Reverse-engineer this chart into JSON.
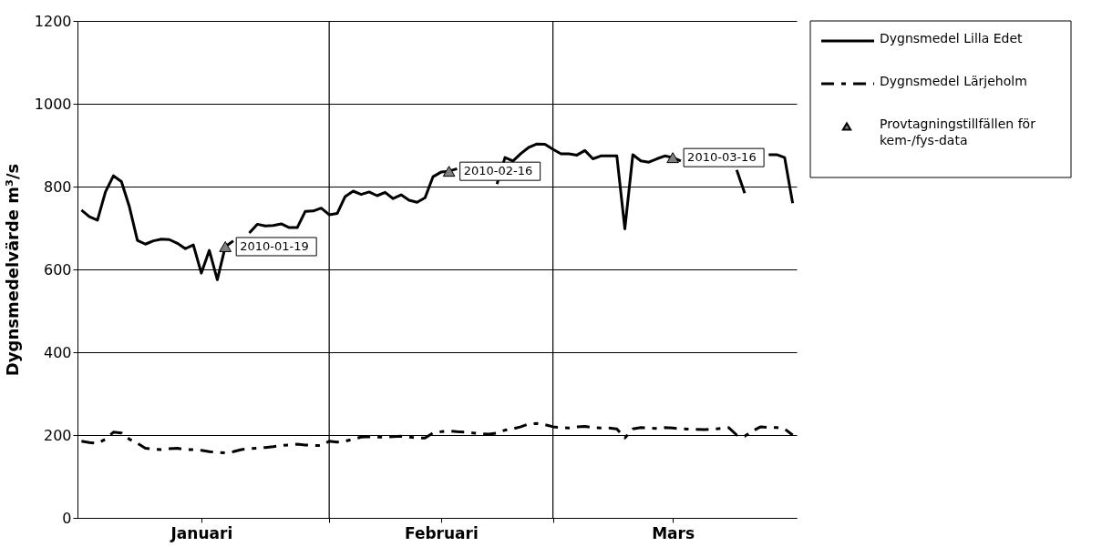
{
  "chart_data": {
    "type": "line",
    "ylabel": "Dygnsmedelvärde m³/s",
    "ylim": [
      0,
      1200
    ],
    "yticks": [
      0,
      200,
      400,
      600,
      800,
      1000,
      1200
    ],
    "xlim": [
      "2009-12-31T12:00",
      "2010-03-31T12:00"
    ],
    "xticks": [
      {
        "value": "2010-01-16",
        "label": "Januari"
      },
      {
        "value": "2010-02-01",
        "label": null
      },
      {
        "value": "2010-02-15",
        "label": "Februari"
      },
      {
        "value": "2010-03-01",
        "label": null
      },
      {
        "value": "2010-03-16",
        "label": "Mars"
      }
    ],
    "grid": true,
    "legend": "right",
    "x": [
      "2010-01-01",
      "2010-01-02",
      "2010-01-03",
      "2010-01-04",
      "2010-01-05",
      "2010-01-06",
      "2010-01-07",
      "2010-01-08",
      "2010-01-09",
      "2010-01-10",
      "2010-01-11",
      "2010-01-12",
      "2010-01-13",
      "2010-01-14",
      "2010-01-15",
      "2010-01-16",
      "2010-01-17",
      "2010-01-18",
      "2010-01-19",
      "2010-01-20",
      "2010-01-21",
      "2010-01-22",
      "2010-01-23",
      "2010-01-24",
      "2010-01-25",
      "2010-01-26",
      "2010-01-27",
      "2010-01-28",
      "2010-01-29",
      "2010-01-30",
      "2010-01-31",
      "2010-02-01",
      "2010-02-02",
      "2010-02-03",
      "2010-02-04",
      "2010-02-05",
      "2010-02-06",
      "2010-02-07",
      "2010-02-08",
      "2010-02-09",
      "2010-02-10",
      "2010-02-11",
      "2010-02-12",
      "2010-02-13",
      "2010-02-14",
      "2010-02-15",
      "2010-02-16",
      "2010-02-17",
      "2010-02-18",
      "2010-02-19",
      "2010-02-20",
      "2010-02-21",
      "2010-02-22",
      "2010-02-23",
      "2010-02-24",
      "2010-02-25",
      "2010-02-26",
      "2010-02-27",
      "2010-02-28",
      "2010-03-01",
      "2010-03-02",
      "2010-03-03",
      "2010-03-04",
      "2010-03-05",
      "2010-03-06",
      "2010-03-07",
      "2010-03-08",
      "2010-03-09",
      "2010-03-10",
      "2010-03-11",
      "2010-03-12",
      "2010-03-13",
      "2010-03-14",
      "2010-03-15",
      "2010-03-16",
      "2010-03-17",
      "2010-03-18",
      "2010-03-19",
      "2010-03-20",
      "2010-03-21",
      "2010-03-22",
      "2010-03-23",
      "2010-03-24",
      "2010-03-25",
      "2010-03-26",
      "2010-03-27",
      "2010-03-28",
      "2010-03-29",
      "2010-03-30",
      "2010-03-31"
    ],
    "series": [
      {
        "name": "Dygnsmedel Lilla Edet",
        "type": "line",
        "color": "#000000",
        "line_style": "solid",
        "values": [
          743,
          727,
          719,
          787,
          826,
          812,
          751,
          670,
          661,
          669,
          673,
          672,
          663,
          650,
          659,
          591,
          646,
          575,
          655,
          669,
          null,
          688,
          709,
          705,
          706,
          710,
          701,
          701,
          740,
          741,
          748,
          732,
          735,
          776,
          789,
          781,
          787,
          778,
          786,
          771,
          780,
          767,
          762,
          773,
          824,
          835,
          837,
          843,
          null,
          null,
          null,
          null,
          806,
          870,
          862,
          880,
          895,
          903,
          902,
          890,
          879,
          879,
          876,
          887,
          867,
          874,
          874,
          874,
          698,
          877,
          862,
          859,
          867,
          874,
          870,
          862,
          null,
          null,
          null,
          null,
          null,
          null,
          840,
          784,
          null,
          null,
          877,
          877,
          870,
          760
        ]
      },
      {
        "name": "Dygnsmedel Lärjeholm",
        "type": "line",
        "color": "#000000",
        "line_style": "dashed",
        "values": [
          185,
          182,
          180,
          190,
          207,
          205,
          190,
          180,
          168,
          166,
          165,
          167,
          168,
          165,
          165,
          163,
          160,
          158,
          157,
          160,
          165,
          167,
          168,
          170,
          172,
          175,
          176,
          178,
          176,
          175,
          175,
          185,
          183,
          185,
          190,
          195,
          196,
          195,
          195,
          196,
          197,
          195,
          193,
          193,
          205,
          208,
          210,
          208,
          207,
          205,
          203,
          202,
          205,
          212,
          215,
          220,
          227,
          228,
          225,
          220,
          218,
          217,
          220,
          221,
          218,
          217,
          217,
          215,
          193,
          215,
          218,
          217,
          216,
          218,
          217,
          215,
          214,
          214,
          213,
          214,
          216,
          218,
          200,
          197,
          210,
          220,
          218,
          218,
          215,
          200
        ]
      },
      {
        "name": "Provtagningstillfällen för kem-/fys-data",
        "type": "scatter",
        "marker": "triangle",
        "color": "#808080",
        "x": [
          "2010-01-19",
          "2010-02-16",
          "2010-03-16"
        ],
        "values": [
          655,
          837,
          870
        ]
      }
    ],
    "annotations": [
      {
        "text": "2010-01-19",
        "x": "2010-01-19",
        "y": 655
      },
      {
        "text": "2010-02-16",
        "x": "2010-02-16",
        "y": 837
      },
      {
        "text": "2010-03-16",
        "x": "2010-03-16",
        "y": 870
      }
    ]
  }
}
